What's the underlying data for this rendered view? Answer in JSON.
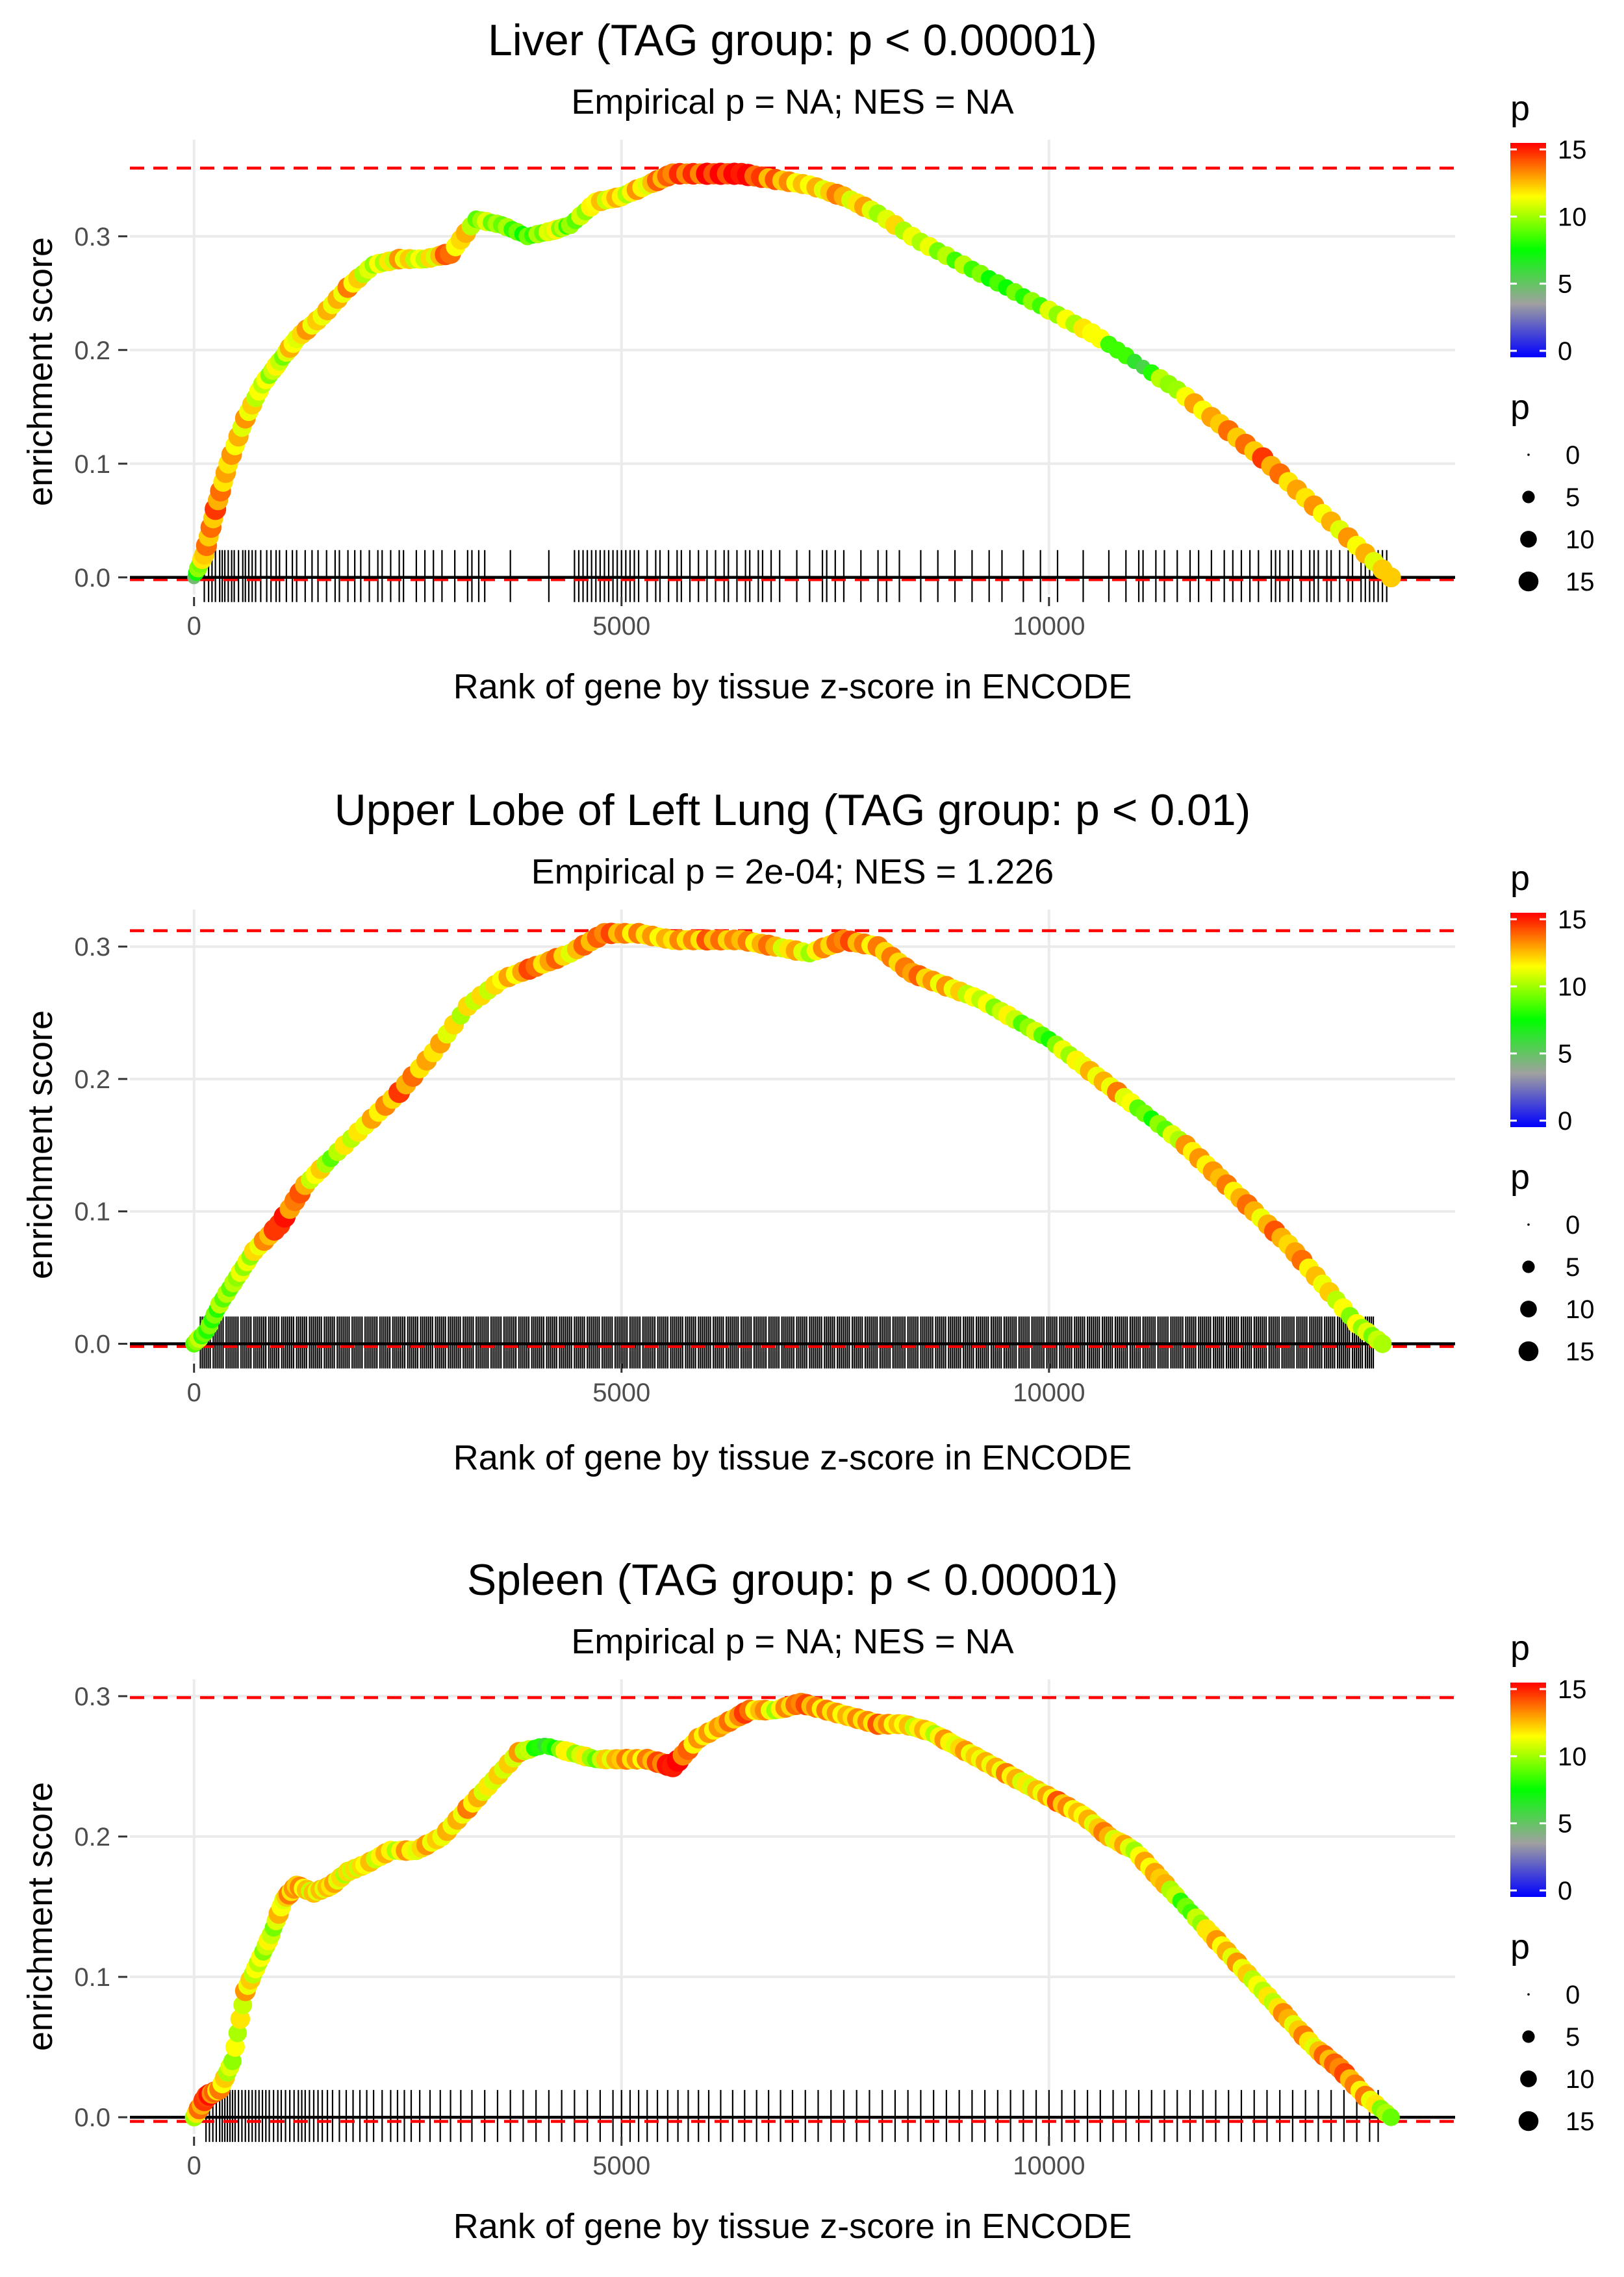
{
  "colors": {
    "background": "#ffffff",
    "grid": "#ebebeb",
    "max_line": "#ff0000",
    "zero_line": "#000000",
    "running_line": "#b4b4b4",
    "gradient_stops": [
      "#0000ff",
      "#a0a0a0",
      "#00ff00",
      "#ffff00",
      "#ff0000"
    ]
  },
  "chart_data": [
    {
      "type": "line",
      "title": "Liver (TAG group: p < 0.00001)",
      "subtitle": "Empirical p = NA; NES = NA",
      "xlabel": "Rank of gene by tissue z-score in ENCODE",
      "ylabel": "enrichment score",
      "xlim": [
        -750,
        14750
      ],
      "ylim": [
        -0.015,
        0.385
      ],
      "x_ticks": [
        0,
        5000,
        10000
      ],
      "x_tick_labels": [
        "0",
        "5000",
        "10000"
      ],
      "y_ticks": [
        0.0,
        0.1,
        0.2,
        0.3
      ],
      "y_tick_labels": [
        "0.0",
        "0.1",
        "0.2",
        "0.3"
      ],
      "max_es": 0.36,
      "min_es": -0.002,
      "x": [
        0,
        120,
        250,
        400,
        600,
        800,
        1000,
        1200,
        1500,
        1800,
        2100,
        2400,
        2700,
        3000,
        3300,
        3600,
        3900,
        4200,
        4400,
        4700,
        5000,
        5300,
        5600,
        6000,
        6400,
        6800,
        7200,
        7600,
        8000,
        8500,
        9000,
        9500,
        10000,
        10500,
        11000,
        11500,
        12000,
        12500,
        13000,
        13500,
        14000
      ],
      "y": [
        0.0,
        0.02,
        0.06,
        0.1,
        0.14,
        0.17,
        0.19,
        0.21,
        0.23,
        0.255,
        0.275,
        0.28,
        0.28,
        0.285,
        0.315,
        0.31,
        0.3,
        0.305,
        0.31,
        0.33,
        0.335,
        0.345,
        0.355,
        0.355,
        0.355,
        0.35,
        0.345,
        0.335,
        0.32,
        0.295,
        0.275,
        0.255,
        0.235,
        0.215,
        0.19,
        0.165,
        0.135,
        0.105,
        0.07,
        0.035,
        0.0
      ],
      "point_p": [
        6,
        12,
        13,
        12,
        12,
        11,
        10,
        12,
        11,
        12,
        10,
        12,
        11,
        13,
        10,
        9,
        8,
        11,
        9,
        12,
        11,
        12,
        13,
        14,
        15,
        13,
        12,
        12,
        11,
        10,
        9,
        8,
        10,
        12,
        6,
        11,
        12,
        13,
        12,
        12,
        12
      ],
      "hit_ticks": "sparse",
      "hit_positions": [
        120,
        170,
        210,
        250,
        300,
        330,
        360,
        400,
        440,
        470,
        520,
        570,
        600,
        640,
        680,
        720,
        780,
        850,
        900,
        960,
        1000,
        1080,
        1150,
        1200,
        1300,
        1380,
        1450,
        1550,
        1650,
        1700,
        1800,
        1880,
        1950,
        2050,
        2150,
        2200,
        2300,
        2400,
        2450,
        2600,
        2700,
        2800,
        2900,
        3050,
        3200,
        3250,
        3330,
        3400,
        3700,
        4150,
        4450,
        4500,
        4550,
        4600,
        4650,
        4700,
        4750,
        4800,
        4850,
        4900,
        4950,
        5000,
        5050,
        5100,
        5150,
        5200,
        5300,
        5400,
        5450,
        5550,
        5650,
        5700,
        5800,
        5900,
        6000,
        6100,
        6200,
        6250,
        6350,
        6450,
        6500,
        6600,
        6650,
        6750,
        6850,
        7050,
        7200,
        7350,
        7400,
        7500,
        7600,
        7800,
        8000,
        8100,
        8250,
        8500,
        8700,
        8900,
        9100,
        9300,
        9450,
        9700,
        9900,
        10100,
        10400,
        10700,
        10900,
        11050,
        11100,
        11250,
        11350,
        11500,
        11650,
        11750,
        11900,
        12050,
        12150,
        12250,
        12350,
        12450,
        12600,
        12650,
        12700,
        12800,
        12850,
        12950,
        13050,
        13100,
        13150,
        13250,
        13300,
        13400,
        13500,
        13550,
        13650,
        13700,
        13750,
        13800,
        13850,
        13900,
        13950
      ],
      "color_legend": {
        "title": "p",
        "labels": [
          "15",
          "10",
          "5",
          "0"
        ],
        "values": [
          15,
          10,
          5,
          0
        ]
      },
      "size_legend": {
        "title": "p",
        "labels": [
          "0",
          "5",
          "10",
          "15"
        ],
        "values": [
          0,
          5,
          10,
          15
        ]
      }
    },
    {
      "type": "line",
      "title": "Upper Lobe of Left Lung (TAG group: p < 0.01)",
      "subtitle": "Empirical p = 2e-04; NES = 1.226",
      "xlabel": "Rank of gene by tissue z-score in ENCODE",
      "ylabel": "enrichment score",
      "xlim": [
        -750,
        14750
      ],
      "ylim": [
        -0.013,
        0.328
      ],
      "x_ticks": [
        0,
        5000,
        10000
      ],
      "x_tick_labels": [
        "0",
        "5000",
        "10000"
      ],
      "y_ticks": [
        0.0,
        0.1,
        0.2,
        0.3
      ],
      "y_tick_labels": [
        "0.0",
        "0.1",
        "0.2",
        "0.3"
      ],
      "max_es": 0.312,
      "min_es": -0.002,
      "x": [
        0,
        150,
        300,
        500,
        700,
        1000,
        1300,
        1600,
        2000,
        2400,
        2800,
        3200,
        3600,
        4000,
        4400,
        4800,
        5200,
        5600,
        6000,
        6400,
        6800,
        7200,
        7600,
        8000,
        8400,
        8800,
        9200,
        9600,
        10000,
        10400,
        10800,
        11200,
        11600,
        12000,
        12400,
        12800,
        13200,
        13600,
        13900
      ],
      "y": [
        0.0,
        0.01,
        0.03,
        0.05,
        0.07,
        0.09,
        0.12,
        0.14,
        0.165,
        0.19,
        0.22,
        0.255,
        0.275,
        0.285,
        0.295,
        0.31,
        0.31,
        0.305,
        0.305,
        0.305,
        0.3,
        0.295,
        0.305,
        0.3,
        0.28,
        0.27,
        0.26,
        0.245,
        0.23,
        0.21,
        0.19,
        0.17,
        0.15,
        0.125,
        0.1,
        0.075,
        0.045,
        0.015,
        0.0
      ],
      "point_p": [
        10,
        8,
        9,
        10,
        11,
        15,
        12,
        10,
        11,
        13,
        12,
        11,
        12,
        13,
        12,
        13,
        12,
        12,
        13,
        13,
        12,
        11,
        13,
        12,
        13,
        12,
        11,
        10,
        9,
        11,
        12,
        8,
        12,
        13,
        12,
        13,
        11,
        10,
        10
      ],
      "hit_ticks": "dense",
      "hit_range": [
        70,
        13800
      ],
      "hit_spacing": 25,
      "color_legend": {
        "title": "p",
        "labels": [
          "15",
          "10",
          "5",
          "0"
        ],
        "values": [
          15,
          10,
          5,
          0
        ]
      },
      "size_legend": {
        "title": "p",
        "labels": [
          "0",
          "5",
          "10",
          "15"
        ],
        "values": [
          0,
          5,
          10,
          15
        ]
      }
    },
    {
      "type": "line",
      "title": "Spleen (TAG group: p < 0.00001)",
      "subtitle": "Empirical p = NA; NES = NA",
      "xlabel": "Rank of gene by tissue z-score in ENCODE",
      "ylabel": "enrichment score",
      "xlim": [
        -750,
        14750
      ],
      "ylim": [
        -0.012,
        0.312
      ],
      "x_ticks": [
        0,
        5000,
        10000
      ],
      "x_tick_labels": [
        "0",
        "5000",
        "10000"
      ],
      "y_ticks": [
        0.0,
        0.1,
        0.2,
        0.3
      ],
      "y_tick_labels": [
        "0.0",
        "0.1",
        "0.2",
        "0.3"
      ],
      "max_es": 0.299,
      "min_es": -0.003,
      "x": [
        0,
        150,
        300,
        450,
        600,
        750,
        900,
        1050,
        1200,
        1400,
        1600,
        1800,
        2000,
        2300,
        2600,
        2900,
        3200,
        3500,
        3800,
        4100,
        4400,
        4700,
        5000,
        5300,
        5600,
        5900,
        6200,
        6500,
        6800,
        7100,
        7400,
        7700,
        8000,
        8300,
        8600,
        8900,
        9200,
        9500,
        9800,
        10100,
        10400,
        10700,
        11000,
        11300,
        11600,
        11900,
        12200,
        12500,
        12800,
        13100,
        13400,
        13700,
        14000
      ],
      "y": [
        0.0,
        0.015,
        0.02,
        0.04,
        0.09,
        0.11,
        0.13,
        0.155,
        0.165,
        0.16,
        0.165,
        0.175,
        0.18,
        0.19,
        0.19,
        0.2,
        0.22,
        0.24,
        0.26,
        0.265,
        0.26,
        0.255,
        0.255,
        0.255,
        0.25,
        0.27,
        0.28,
        0.29,
        0.29,
        0.295,
        0.29,
        0.285,
        0.28,
        0.28,
        0.275,
        0.265,
        0.255,
        0.245,
        0.235,
        0.225,
        0.215,
        0.2,
        0.19,
        0.17,
        0.15,
        0.13,
        0.11,
        0.09,
        0.07,
        0.05,
        0.035,
        0.015,
        0.0
      ],
      "point_p": [
        11,
        14,
        12,
        10,
        12,
        11,
        10,
        12,
        12,
        11,
        12,
        11,
        12,
        11,
        12,
        11,
        12,
        11,
        12,
        7,
        11,
        10,
        12,
        12,
        15,
        12,
        13,
        13,
        11,
        13,
        12,
        12,
        13,
        12,
        11,
        12,
        11,
        12,
        11,
        13,
        12,
        12,
        11,
        12,
        8,
        12,
        12,
        11,
        12,
        12,
        13,
        12,
        9
      ],
      "hit_ticks": "sparse",
      "hit_positions": [
        140,
        180,
        220,
        260,
        300,
        330,
        360,
        390,
        420,
        450,
        480,
        520,
        560,
        600,
        640,
        680,
        720,
        760,
        800,
        840,
        880,
        930,
        980,
        1020,
        1070,
        1120,
        1170,
        1220,
        1260,
        1300,
        1350,
        1400,
        1450,
        1500,
        1560,
        1620,
        1700,
        1780,
        1860,
        1940,
        2020,
        2100,
        2200,
        2300,
        2380,
        2460,
        2540,
        2640,
        2760,
        2880,
        3000,
        3120,
        3250,
        3400,
        3550,
        3700,
        3850,
        4000,
        4150,
        4300,
        4450,
        4600,
        4750,
        4900,
        5000,
        5100,
        5200,
        5300,
        5420,
        5540,
        5660,
        5780,
        5900,
        6020,
        6160,
        6300,
        6440,
        6580,
        6720,
        6860,
        7000,
        7150,
        7300,
        7450,
        7600,
        7750,
        7900,
        8050,
        8200,
        8350,
        8500,
        8650,
        8800,
        8950,
        9100,
        9250,
        9400,
        9550,
        9700,
        9850,
        10000,
        10150,
        10300,
        10450,
        10600,
        10750,
        10900,
        11050,
        11200,
        11350,
        11500,
        11650,
        11800,
        11950,
        12100,
        12250,
        12400,
        12550,
        12700,
        12850,
        13000,
        13150,
        13300,
        13450,
        13600,
        13750,
        13850
      ],
      "color_legend": {
        "title": "p",
        "labels": [
          "15",
          "10",
          "5",
          "0"
        ],
        "values": [
          15,
          10,
          5,
          0
        ]
      },
      "size_legend": {
        "title": "p",
        "labels": [
          "0",
          "5",
          "10",
          "15"
        ],
        "values": [
          0,
          5,
          10,
          15
        ]
      }
    }
  ]
}
